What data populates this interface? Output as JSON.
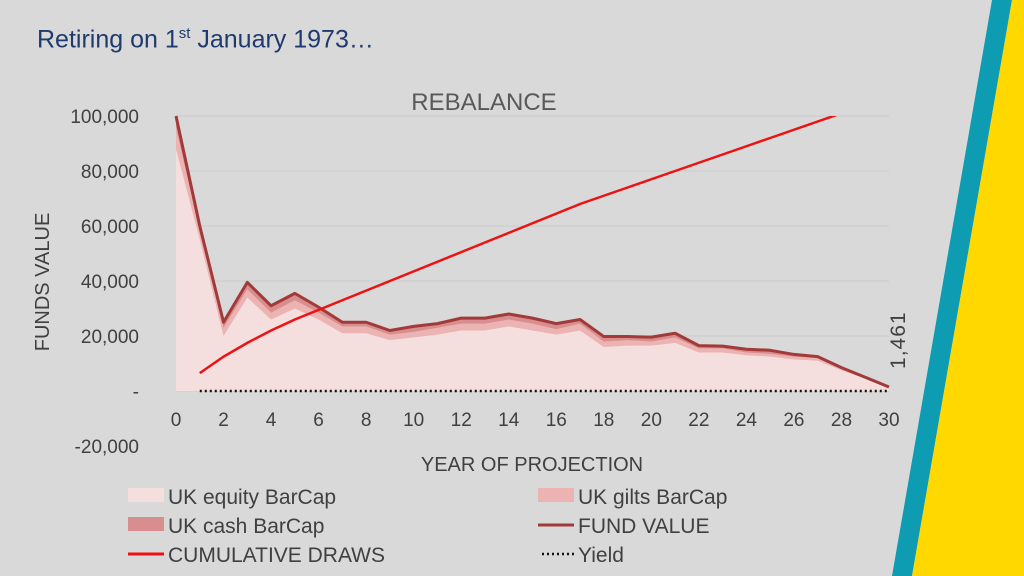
{
  "slide": {
    "title_pre": "Retiring on 1",
    "title_sup": "st",
    "title_post": " January 1973…"
  },
  "colors": {
    "background": "#d9d9d9",
    "title_text": "#1f3a6e",
    "stripe_teal": "#0e9cb3",
    "stripe_yellow": "#ffd800",
    "equity_fill": "#f5dede",
    "gilts_fill": "#ecb3b3",
    "cash_fill": "#d88e8e",
    "fund_line": "#a23a3a",
    "draws_line": "#ee1111",
    "yield_line": "#111111"
  },
  "chart_data": {
    "type": "area",
    "title": "REBALANCE",
    "xlabel": "YEAR OF PROJECTION",
    "ylabel": "FUNDS VALUE",
    "xlim": [
      0,
      30
    ],
    "ylim": [
      -20000,
      100000
    ],
    "x_ticks": [
      0,
      2,
      4,
      6,
      8,
      10,
      12,
      14,
      16,
      18,
      20,
      22,
      24,
      26,
      28,
      30
    ],
    "y_ticks": [
      {
        "value": -20000,
        "label": "-20,000"
      },
      {
        "value": 0,
        "label": "-"
      },
      {
        "value": 20000,
        "label": "20,000"
      },
      {
        "value": 40000,
        "label": "40,000"
      },
      {
        "value": 60000,
        "label": "60,000"
      },
      {
        "value": 80000,
        "label": "80,000"
      },
      {
        "value": 100000,
        "label": "100,000"
      }
    ],
    "grid": true,
    "legend_position": "bottom",
    "x": [
      0,
      1,
      2,
      3,
      4,
      5,
      6,
      7,
      8,
      9,
      10,
      11,
      12,
      13,
      14,
      15,
      16,
      17,
      18,
      19,
      20,
      21,
      22,
      23,
      24,
      25,
      26,
      27,
      28,
      29,
      30
    ],
    "series": [
      {
        "name": "UK equity BarCap",
        "kind": "area",
        "values": [
          88000,
          55000,
          20000,
          34000,
          26000,
          30000,
          26000,
          21000,
          21000,
          18500,
          19500,
          20500,
          22000,
          22000,
          23500,
          22000,
          20500,
          22000,
          16000,
          16500,
          16500,
          17500,
          14000,
          14000,
          13000,
          12500,
          11500,
          11000,
          7500,
          4500,
          1300
        ]
      },
      {
        "name": "UK gilts BarCap",
        "kind": "area",
        "values": [
          96000,
          58000,
          23000,
          37000,
          28500,
          33000,
          28500,
          23500,
          23500,
          20500,
          21500,
          23000,
          24500,
          24500,
          26000,
          24500,
          22500,
          24500,
          18000,
          18500,
          18000,
          19500,
          15500,
          15500,
          14000,
          13500,
          12500,
          12000,
          8200,
          4900,
          1400
        ]
      },
      {
        "name": "UK cash BarCap",
        "kind": "area",
        "values": [
          100000,
          60000,
          25000,
          39500,
          31000,
          35500,
          30500,
          25000,
          25000,
          22000,
          23500,
          24500,
          26500,
          26500,
          28000,
          26500,
          24500,
          26000,
          19800,
          19800,
          19600,
          21000,
          16500,
          16300,
          15200,
          14800,
          13300,
          12500,
          8500,
          5000,
          1461
        ]
      },
      {
        "name": "FUND VALUE",
        "kind": "line",
        "values": [
          100000,
          60000,
          25000,
          39500,
          31000,
          35500,
          30500,
          25000,
          25000,
          22000,
          23500,
          24500,
          26500,
          26500,
          28000,
          26500,
          24500,
          26000,
          19800,
          19800,
          19600,
          21000,
          16500,
          16300,
          15200,
          14800,
          13300,
          12500,
          8500,
          5000,
          1461
        ]
      },
      {
        "name": "CUMULATIVE DRAWS",
        "kind": "line",
        "values": [
          null,
          6500,
          12500,
          17500,
          22000,
          26000,
          29500,
          33000,
          36500,
          40000,
          43500,
          47000,
          50500,
          54000,
          57500,
          61000,
          64500,
          68000,
          71000,
          74000,
          77000,
          80000,
          83000,
          86000,
          89000,
          92000,
          95000,
          98000,
          101000,
          104000,
          107000
        ]
      },
      {
        "name": "Yield",
        "kind": "dotted",
        "values": [
          null,
          0,
          0,
          0,
          0,
          0,
          0,
          0,
          0,
          0,
          0,
          0,
          0,
          0,
          0,
          0,
          0,
          0,
          0,
          0,
          0,
          0,
          0,
          0,
          0,
          0,
          0,
          0,
          0,
          0,
          0
        ]
      }
    ],
    "annotations": [
      {
        "text": "1,461",
        "x": 30,
        "y": 1461,
        "rotated": true
      }
    ]
  }
}
